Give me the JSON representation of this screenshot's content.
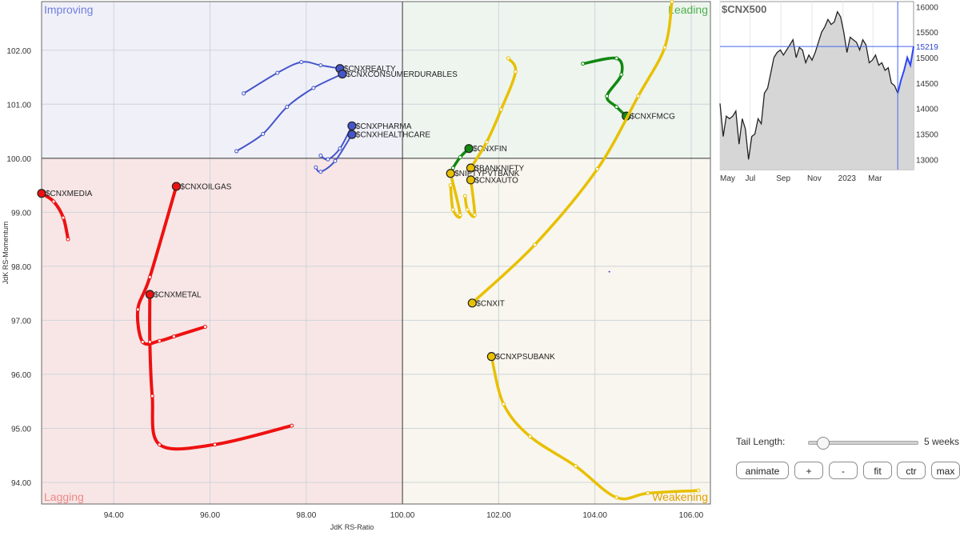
{
  "chart_data": {
    "type": "scatter",
    "xlabel": "JdK RS-Ratio",
    "ylabel": "JdK RS-Momentum",
    "xlim": [
      92.5,
      106.4
    ],
    "ylim": [
      93.6,
      102.9
    ],
    "center": [
      100,
      100
    ],
    "x_ticks": [
      "94.00",
      "96.00",
      "98.00",
      "100.00",
      "102.00",
      "104.00",
      "106.00"
    ],
    "y_ticks": [
      "94.00",
      "95.00",
      "96.00",
      "97.00",
      "98.00",
      "99.00",
      "100.00",
      "101.00",
      "102.00"
    ],
    "quadrants": {
      "improving": "Improving",
      "leading": "Leading",
      "weakening": "Weakening",
      "lagging": "Lagging"
    },
    "colors": {
      "improving": "#4455cc",
      "leading": "#118811",
      "weakening": "#e8c000",
      "lagging": "#ee1111",
      "improving_bg": "#f0f0f8",
      "leading_bg": "#eef5ee",
      "weakening_bg": "#f8f6ee",
      "lagging_bg": "#f8e6e6"
    },
    "series": [
      {
        "name": "$CNXREALTY",
        "quadrant": "improving",
        "points": [
          [
            96.7,
            101.2
          ],
          [
            97.4,
            101.58
          ],
          [
            97.9,
            101.78
          ],
          [
            98.3,
            101.72
          ],
          [
            98.7,
            101.66
          ]
        ]
      },
      {
        "name": "$CNXCONSUMERDURABLES",
        "quadrant": "improving",
        "points": [
          [
            96.55,
            100.13
          ],
          [
            97.1,
            100.45
          ],
          [
            97.6,
            100.95
          ],
          [
            98.15,
            101.3
          ],
          [
            98.75,
            101.56
          ]
        ]
      },
      {
        "name": "$CNXPHARMA",
        "quadrant": "improving",
        "points": [
          [
            98.3,
            100.05
          ],
          [
            98.45,
            99.98
          ],
          [
            98.7,
            100.18
          ],
          [
            98.95,
            100.6
          ]
        ]
      },
      {
        "name": "$CNXHEALTHCARE",
        "quadrant": "improving",
        "points": [
          [
            98.2,
            99.83
          ],
          [
            98.3,
            99.75
          ],
          [
            98.6,
            99.95
          ],
          [
            98.95,
            100.44
          ]
        ]
      },
      {
        "name": "$CNXFMCG",
        "quadrant": "leading",
        "points": [
          [
            103.75,
            101.75
          ],
          [
            104.45,
            101.85
          ],
          [
            104.55,
            101.55
          ],
          [
            104.25,
            101.15
          ],
          [
            104.45,
            100.95
          ],
          [
            104.65,
            100.78
          ]
        ]
      },
      {
        "name": "$CNXFIN",
        "quadrant": "leading",
        "points": [
          [
            101.05,
            99.82
          ],
          [
            101.2,
            100.02
          ],
          [
            101.38,
            100.18
          ]
        ]
      },
      {
        "name": "$BANKNIFTY",
        "quadrant": "weakening",
        "points": [
          [
            102.2,
            101.85
          ],
          [
            102.35,
            101.6
          ],
          [
            102.05,
            100.9
          ],
          [
            101.75,
            100.3
          ],
          [
            101.42,
            99.82
          ]
        ]
      },
      {
        "name": "$NIFTYPVTBANK",
        "quadrant": "weakening",
        "points": [
          [
            101.0,
            99.5
          ],
          [
            101.05,
            99.05
          ],
          [
            101.2,
            98.95
          ],
          [
            101.0,
            99.72
          ]
        ]
      },
      {
        "name": "$CNXAUTO",
        "quadrant": "weakening",
        "points": [
          [
            101.3,
            99.3
          ],
          [
            101.35,
            99.05
          ],
          [
            101.5,
            98.95
          ],
          [
            101.42,
            99.6
          ]
        ]
      },
      {
        "name": "$CNXIT",
        "quadrant": "weakening",
        "points": [
          [
            105.6,
            102.9
          ],
          [
            105.45,
            102.05
          ],
          [
            104.9,
            101.15
          ],
          [
            104.05,
            99.8
          ],
          [
            102.75,
            98.4
          ],
          [
            101.45,
            97.32
          ]
        ]
      },
      {
        "name": "$CNXPSUBANK",
        "quadrant": "weakening",
        "points": [
          [
            106.15,
            93.85
          ],
          [
            105.1,
            93.8
          ],
          [
            104.45,
            93.72
          ],
          [
            103.6,
            94.3
          ],
          [
            102.65,
            94.85
          ],
          [
            102.1,
            95.45
          ],
          [
            101.85,
            96.33
          ]
        ]
      },
      {
        "name": "$CNXMEDIA",
        "quadrant": "lagging",
        "points": [
          [
            93.05,
            98.5
          ],
          [
            92.95,
            98.9
          ],
          [
            92.75,
            99.2
          ],
          [
            92.5,
            99.35
          ]
        ]
      },
      {
        "name": "$CNXOILGAS",
        "quadrant": "lagging",
        "points": [
          [
            95.9,
            96.88
          ],
          [
            95.25,
            96.7
          ],
          [
            94.95,
            96.62
          ],
          [
            94.6,
            96.6
          ],
          [
            94.5,
            97.2
          ],
          [
            94.75,
            97.8
          ],
          [
            95.3,
            99.48
          ]
        ]
      },
      {
        "name": "$CNXMETAL",
        "quadrant": "lagging",
        "points": [
          [
            97.7,
            95.05
          ],
          [
            96.1,
            94.7
          ],
          [
            94.95,
            94.7
          ],
          [
            94.8,
            95.6
          ],
          [
            94.75,
            96.6
          ],
          [
            94.75,
            97.48
          ]
        ]
      }
    ],
    "stray_point": [
      104.3,
      97.9
    ]
  },
  "mini_chart": {
    "title": "$CNX500",
    "current_label": "15219",
    "current_value": 15219,
    "y_ticks": [
      "16000",
      "15500",
      "15000",
      "14500",
      "14000",
      "13500",
      "13000"
    ],
    "y_range": [
      12800,
      16100
    ],
    "x_ticks": [
      "May",
      "Jul",
      "Sep",
      "Nov",
      "2023",
      "Mar"
    ],
    "values": [
      14100,
      13450,
      13850,
      13800,
      13850,
      13950,
      13300,
      13800,
      13600,
      13000,
      13450,
      13500,
      13800,
      13700,
      14300,
      14400,
      14700,
      15000,
      15100,
      15150,
      15050,
      15150,
      15250,
      15350,
      15000,
      15200,
      15150,
      14900,
      15050,
      14950,
      15100,
      15300,
      15500,
      15600,
      15750,
      15650,
      15700,
      15900,
      15800,
      15500,
      15100,
      15400,
      15350,
      15300,
      15150,
      15350,
      15250,
      14900,
      14950,
      15050,
      14850,
      14900,
      14750,
      14800,
      14500,
      14450,
      14300,
      14550,
      14750,
      15000,
      14850,
      15219
    ],
    "highlight_from": 56,
    "colors": {
      "line": "#222222",
      "fill": "#d6d6d6",
      "highlight": "#2a44ff",
      "crosshair": "#4466ee"
    }
  },
  "controls": {
    "tail_label": "Tail Length:",
    "tail_value": "5 weeks",
    "tail_fraction": 0.05,
    "buttons": {
      "animate": "animate",
      "plus": "+",
      "minus": "-",
      "fit": "fit",
      "ctr": "ctr",
      "max": "max"
    }
  }
}
